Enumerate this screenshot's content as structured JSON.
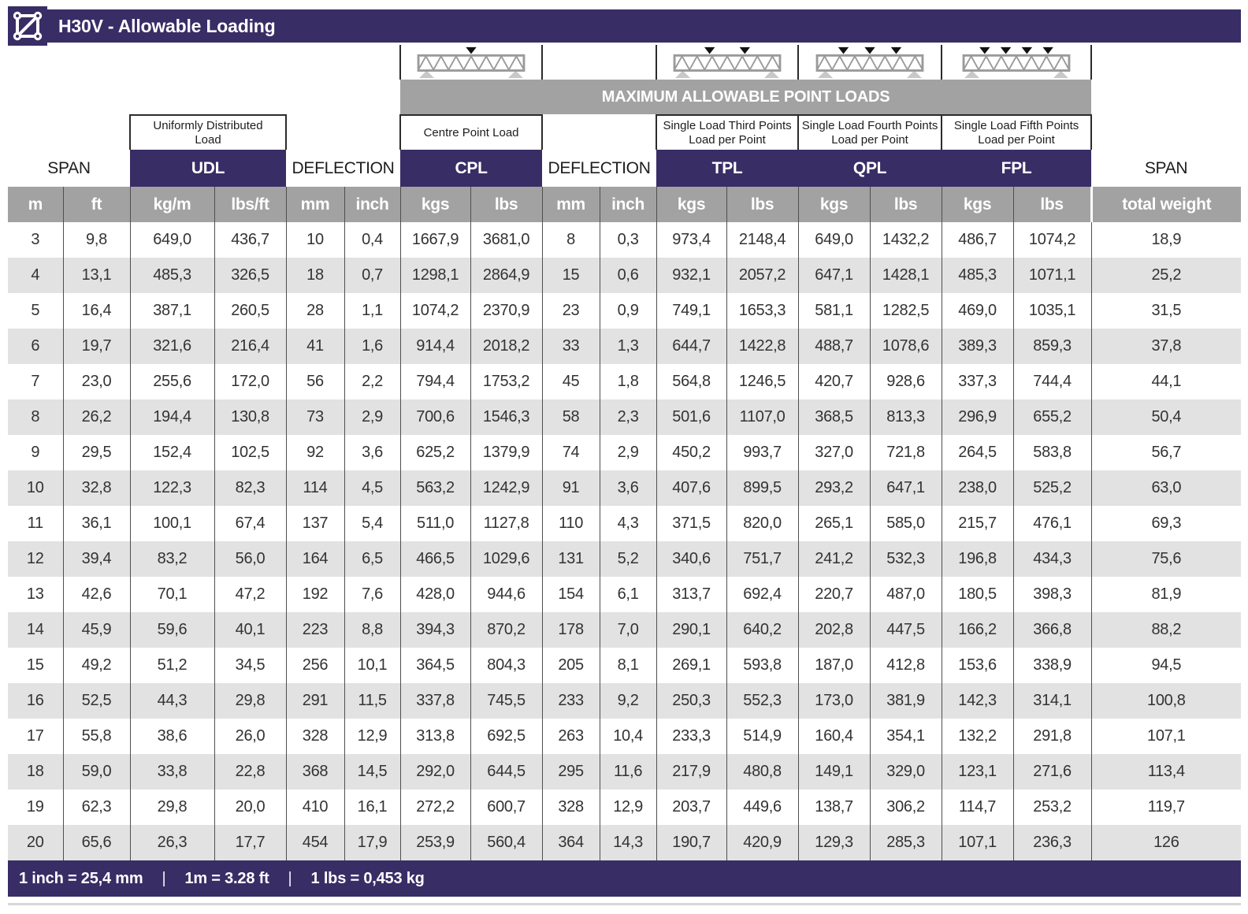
{
  "title": "H30V - Allowable Loading",
  "max_loads_banner": "MAXIMUM ALLOWABLE POINT LOADS",
  "column_groups": {
    "span_left": {
      "label": "SPAN"
    },
    "udl": {
      "sub": "Uniformly Distributed\nLoad",
      "label": "UDL"
    },
    "deflection_udl": {
      "label": "DEFLECTION"
    },
    "cpl": {
      "sub": "Centre Point Load",
      "label": "CPL",
      "arrows": 1
    },
    "deflection_cpl": {
      "label": "DEFLECTION"
    },
    "tpl": {
      "sub": "Single Load Third Points\nLoad per Point",
      "label": "TPL",
      "arrows": 2
    },
    "qpl": {
      "sub": "Single Load Fourth Points\nLoad per Point",
      "label": "QPL",
      "arrows": 3
    },
    "fpl": {
      "sub": "Single Load Fifth Points\nLoad per Point",
      "label": "FPL",
      "arrows": 4
    },
    "span_right": {
      "label": "SPAN"
    }
  },
  "units": [
    "m",
    "ft",
    "kg/m",
    "lbs/ft",
    "mm",
    "inch",
    "kgs",
    "lbs",
    "mm",
    "inch",
    "kgs",
    "lbs",
    "kgs",
    "lbs",
    "kgs",
    "lbs",
    "total weight"
  ],
  "rows": [
    [
      "3",
      "9,8",
      "649,0",
      "436,7",
      "10",
      "0,4",
      "1667,9",
      "3681,0",
      "8",
      "0,3",
      "973,4",
      "2148,4",
      "649,0",
      "1432,2",
      "486,7",
      "1074,2",
      "18,9"
    ],
    [
      "4",
      "13,1",
      "485,3",
      "326,5",
      "18",
      "0,7",
      "1298,1",
      "2864,9",
      "15",
      "0,6",
      "932,1",
      "2057,2",
      "647,1",
      "1428,1",
      "485,3",
      "1071,1",
      "25,2"
    ],
    [
      "5",
      "16,4",
      "387,1",
      "260,5",
      "28",
      "1,1",
      "1074,2",
      "2370,9",
      "23",
      "0,9",
      "749,1",
      "1653,3",
      "581,1",
      "1282,5",
      "469,0",
      "1035,1",
      "31,5"
    ],
    [
      "6",
      "19,7",
      "321,6",
      "216,4",
      "41",
      "1,6",
      "914,4",
      "2018,2",
      "33",
      "1,3",
      "644,7",
      "1422,8",
      "488,7",
      "1078,6",
      "389,3",
      "859,3",
      "37,8"
    ],
    [
      "7",
      "23,0",
      "255,6",
      "172,0",
      "56",
      "2,2",
      "794,4",
      "1753,2",
      "45",
      "1,8",
      "564,8",
      "1246,5",
      "420,7",
      "928,6",
      "337,3",
      "744,4",
      "44,1"
    ],
    [
      "8",
      "26,2",
      "194,4",
      "130,8",
      "73",
      "2,9",
      "700,6",
      "1546,3",
      "58",
      "2,3",
      "501,6",
      "1107,0",
      "368,5",
      "813,3",
      "296,9",
      "655,2",
      "50,4"
    ],
    [
      "9",
      "29,5",
      "152,4",
      "102,5",
      "92",
      "3,6",
      "625,2",
      "1379,9",
      "74",
      "2,9",
      "450,2",
      "993,7",
      "327,0",
      "721,8",
      "264,5",
      "583,8",
      "56,7"
    ],
    [
      "10",
      "32,8",
      "122,3",
      "82,3",
      "114",
      "4,5",
      "563,2",
      "1242,9",
      "91",
      "3,6",
      "407,6",
      "899,5",
      "293,2",
      "647,1",
      "238,0",
      "525,2",
      "63,0"
    ],
    [
      "11",
      "36,1",
      "100,1",
      "67,4",
      "137",
      "5,4",
      "511,0",
      "1127,8",
      "110",
      "4,3",
      "371,5",
      "820,0",
      "265,1",
      "585,0",
      "215,7",
      "476,1",
      "69,3"
    ],
    [
      "12",
      "39,4",
      "83,2",
      "56,0",
      "164",
      "6,5",
      "466,5",
      "1029,6",
      "131",
      "5,2",
      "340,6",
      "751,7",
      "241,2",
      "532,3",
      "196,8",
      "434,3",
      "75,6"
    ],
    [
      "13",
      "42,6",
      "70,1",
      "47,2",
      "192",
      "7,6",
      "428,0",
      "944,6",
      "154",
      "6,1",
      "313,7",
      "692,4",
      "220,7",
      "487,0",
      "180,5",
      "398,3",
      "81,9"
    ],
    [
      "14",
      "45,9",
      "59,6",
      "40,1",
      "223",
      "8,8",
      "394,3",
      "870,2",
      "178",
      "7,0",
      "290,1",
      "640,2",
      "202,8",
      "447,5",
      "166,2",
      "366,8",
      "88,2"
    ],
    [
      "15",
      "49,2",
      "51,2",
      "34,5",
      "256",
      "10,1",
      "364,5",
      "804,3",
      "205",
      "8,1",
      "269,1",
      "593,8",
      "187,0",
      "412,8",
      "153,6",
      "338,9",
      "94,5"
    ],
    [
      "16",
      "52,5",
      "44,3",
      "29,8",
      "291",
      "11,5",
      "337,8",
      "745,5",
      "233",
      "9,2",
      "250,3",
      "552,3",
      "173,0",
      "381,9",
      "142,3",
      "314,1",
      "100,8"
    ],
    [
      "17",
      "55,8",
      "38,6",
      "26,0",
      "328",
      "12,9",
      "313,8",
      "692,5",
      "263",
      "10,4",
      "233,3",
      "514,9",
      "160,4",
      "354,1",
      "132,2",
      "291,8",
      "107,1"
    ],
    [
      "18",
      "59,0",
      "33,8",
      "22,8",
      "368",
      "14,5",
      "292,0",
      "644,5",
      "295",
      "11,6",
      "217,9",
      "480,8",
      "149,1",
      "329,0",
      "123,1",
      "271,6",
      "113,4"
    ],
    [
      "19",
      "62,3",
      "29,8",
      "20,0",
      "410",
      "16,1",
      "272,2",
      "600,7",
      "328",
      "12,9",
      "203,7",
      "449,6",
      "138,7",
      "306,2",
      "114,7",
      "253,2",
      "119,7"
    ],
    [
      "20",
      "65,6",
      "26,3",
      "17,7",
      "454",
      "17,9",
      "253,9",
      "560,4",
      "364",
      "14,3",
      "190,7",
      "420,9",
      "129,3",
      "285,3",
      "107,1",
      "236,3",
      "126"
    ]
  ],
  "footer_conversions": [
    "1 inch = 25,4 mm",
    "1m = 3.28 ft",
    "1 lbs = 0,453 kg"
  ],
  "colors": {
    "purple": "#392d66",
    "band-gray": "#a2a2a2",
    "row-alt": "#e2e2e2",
    "cell-line": "#4f4f4f",
    "box-line": "#2b2b2b",
    "truss-gray": "#9a9a9a",
    "support-gray": "#c8c8c8"
  }
}
